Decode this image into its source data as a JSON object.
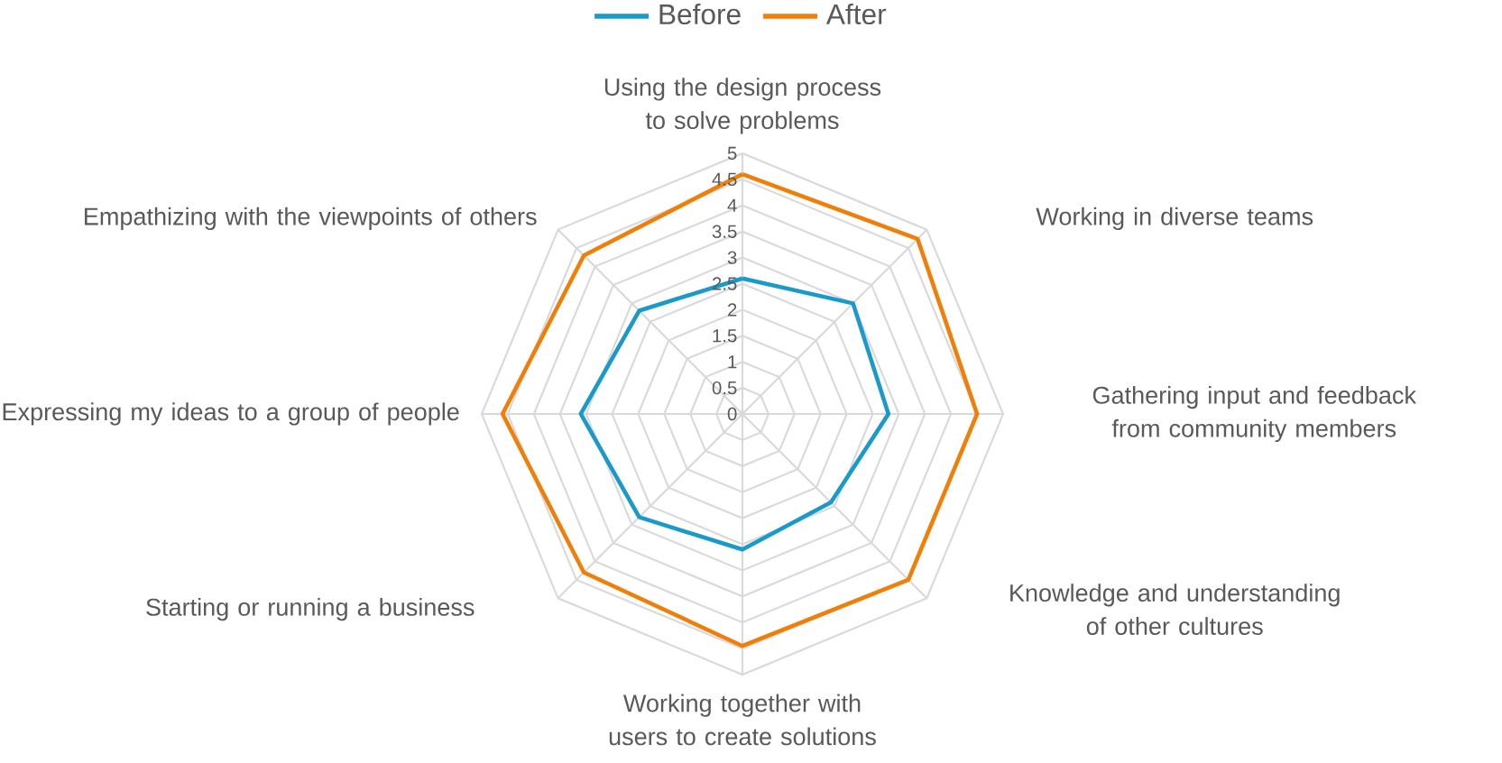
{
  "chart_data": {
    "type": "radar",
    "categories": [
      "Using the design process to solve problems",
      "Working in diverse teams",
      "Gathering input and feedback from community members",
      "Knowledge and understanding of other cultures",
      "Working together with users to create solutions",
      "Starting or running a business",
      "Expressing my ideas to a group of people",
      "Empathizing with the viewpoints of others"
    ],
    "series": [
      {
        "name": "Before",
        "color": "#1a9ac9",
        "values": [
          2.6,
          3.0,
          2.8,
          2.4,
          2.6,
          2.8,
          3.1,
          2.8
        ]
      },
      {
        "name": "After",
        "color": "#f07f09",
        "values": [
          4.6,
          4.75,
          4.5,
          4.5,
          4.45,
          4.3,
          4.6,
          4.3
        ]
      }
    ],
    "ylim": [
      0,
      5
    ],
    "yticks": [
      0,
      0.5,
      1,
      1.5,
      2,
      2.5,
      3,
      3.5,
      4,
      4.5,
      5
    ],
    "grid": true,
    "legend": "top",
    "marker": "none"
  }
}
